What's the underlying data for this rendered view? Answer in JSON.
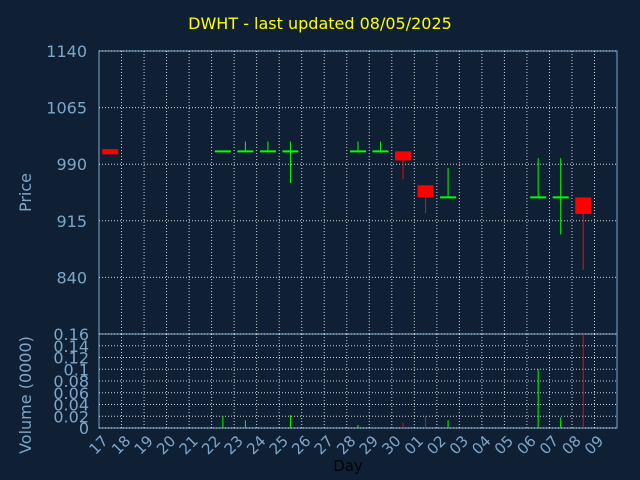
{
  "title": "DWHT - last updated 08/05/2025",
  "chart_data": [
    {
      "type": "candlestick",
      "ylabel": "Price",
      "ylim": [
        765,
        1140
      ],
      "yticks": [
        1140,
        1065,
        990,
        915,
        840
      ],
      "grid": true,
      "days": [
        "17",
        "18",
        "19",
        "20",
        "21",
        "22",
        "23",
        "24",
        "25",
        "26",
        "27",
        "28",
        "29",
        "30",
        "01",
        "02",
        "03",
        "04",
        "05",
        "06",
        "07",
        "08",
        "09"
      ],
      "candles": [
        {
          "day": "17",
          "open": 1010,
          "close": 1003,
          "high": 1010,
          "low": 1003
        },
        {
          "day": "22",
          "open": 1007,
          "close": 1007,
          "high": 1007,
          "low": 1007
        },
        {
          "day": "23",
          "open": 1007,
          "close": 1007,
          "high": 1020,
          "low": 1007
        },
        {
          "day": "24",
          "open": 1007,
          "close": 1007,
          "high": 1020,
          "low": 1007
        },
        {
          "day": "25",
          "open": 1007,
          "close": 1007,
          "high": 1020,
          "low": 965
        },
        {
          "day": "28",
          "open": 1007,
          "close": 1007,
          "high": 1020,
          "low": 1007
        },
        {
          "day": "29",
          "open": 1007,
          "close": 1007,
          "high": 1020,
          "low": 1007
        },
        {
          "day": "30",
          "open": 1007,
          "close": 995,
          "high": 1007,
          "low": 970
        },
        {
          "day": "01",
          "open": 962,
          "close": 946,
          "high": 962,
          "low": 925
        },
        {
          "day": "02",
          "open": 946,
          "close": 946,
          "high": 985,
          "low": 946
        },
        {
          "day": "06",
          "open": 946,
          "close": 946,
          "high": 998,
          "low": 946
        },
        {
          "day": "07",
          "open": 946,
          "close": 946,
          "high": 998,
          "low": 897
        },
        {
          "day": "08",
          "open": 946,
          "close": 924,
          "high": 946,
          "low": 850
        }
      ]
    },
    {
      "type": "bar",
      "ylabel": "Volume (0000)",
      "xlabel": "Day",
      "ylim": [
        0,
        0.16
      ],
      "yticks": [
        "0",
        "0.02",
        "0.04",
        "0.06",
        "0.08",
        "0.1",
        "0.12",
        "0.14",
        "0.16"
      ],
      "bars": [
        {
          "day": "22",
          "value": 0.02,
          "color": "green"
        },
        {
          "day": "23",
          "value": 0.013,
          "color": "green"
        },
        {
          "day": "25",
          "value": 0.022,
          "color": "green"
        },
        {
          "day": "28",
          "value": 0.005,
          "color": "green"
        },
        {
          "day": "30",
          "value": 0.009,
          "color": "red"
        },
        {
          "day": "01",
          "value": 0.02,
          "color": "red"
        },
        {
          "day": "02",
          "value": 0.013,
          "color": "green"
        },
        {
          "day": "06",
          "value": 0.1,
          "color": "green"
        },
        {
          "day": "07",
          "value": 0.018,
          "color": "green"
        },
        {
          "day": "08",
          "value": 0.16,
          "color": "red"
        }
      ]
    }
  ],
  "colors": {
    "up": "#00ff00",
    "down": "#ff0000",
    "grid": "#ffffff",
    "axis": "#7ea6c9",
    "title": "#ffff00"
  }
}
